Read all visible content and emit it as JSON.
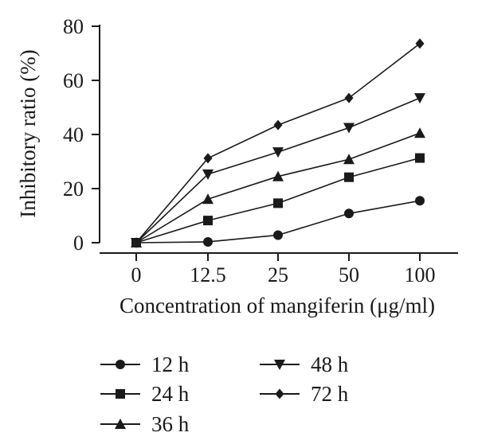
{
  "chart_data": {
    "type": "line",
    "categories": [
      "0",
      "12.5",
      "25",
      "50",
      "100"
    ],
    "xlabel": "Concentration of mangiferin (μg/ml)",
    "ylabel": "Inhibitory ratio (%)",
    "ylim": [
      0,
      80
    ],
    "yticks": [
      0,
      20,
      40,
      60,
      80
    ],
    "grid": false,
    "legend_position": "bottom",
    "series": [
      {
        "name": "12 h",
        "marker": "circle",
        "values": [
          0,
          0.3,
          2.8,
          10.8,
          15.5
        ]
      },
      {
        "name": "24 h",
        "marker": "square",
        "values": [
          0,
          8.2,
          14.6,
          24.2,
          31.3
        ]
      },
      {
        "name": "36 h",
        "marker": "triangle-up",
        "values": [
          0,
          16.1,
          24.5,
          30.8,
          40.5
        ]
      },
      {
        "name": "48 h",
        "marker": "triangle-down",
        "values": [
          0,
          25.3,
          33.5,
          42.5,
          53.5
        ]
      },
      {
        "name": "72 h",
        "marker": "diamond",
        "values": [
          0,
          31.2,
          43.5,
          53.5,
          73.6
        ]
      }
    ],
    "color": "#1a1a1a"
  }
}
